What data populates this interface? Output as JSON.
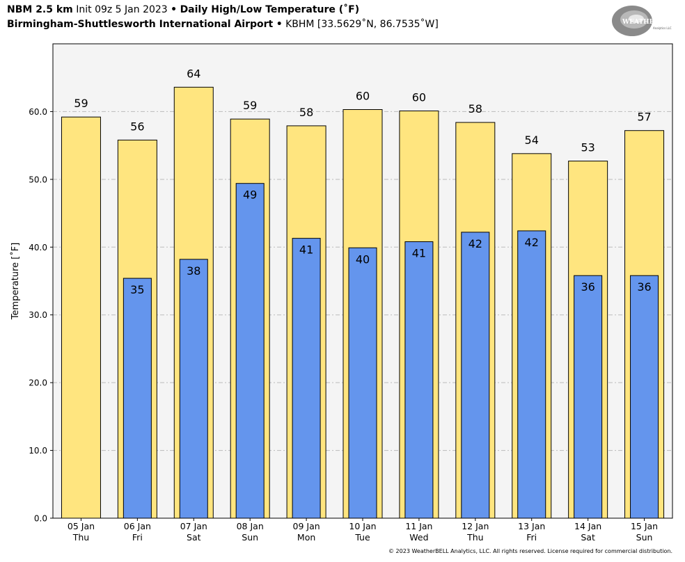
{
  "header": {
    "model": "NBM 2.5 km",
    "init": "Init 09z 5 Jan 2023",
    "bullet": "•",
    "product": "Daily High/Low Temperature (˚F)",
    "station": "Birmingham-Shuttlesworth International Airport",
    "station_code": "KBHM [33.5629˚N, 86.7535˚W]"
  },
  "logo": {
    "text_main": "WEATHERBELL",
    "text_sub": "Analytics LLC",
    "icon": "swirl-logo"
  },
  "footer": "© 2023 WeatherBELL Analytics, LLC. All rights reserved. License required for commercial distribution.",
  "colors": {
    "high": "#ffe57f",
    "low": "#6495ed",
    "plot_bg": "#f4f4f4",
    "grid": "#bbbbbb"
  },
  "chart_data": {
    "type": "bar",
    "ylabel": "Temperature [˚F]",
    "ylim": [
      0,
      70
    ],
    "yticks": [
      "0.0",
      "10.0",
      "20.0",
      "30.0",
      "40.0",
      "50.0",
      "60.0"
    ],
    "grid": true,
    "categories": [
      "05 Jan",
      "06 Jan",
      "07 Jan",
      "08 Jan",
      "09 Jan",
      "10 Jan",
      "11 Jan",
      "12 Jan",
      "13 Jan",
      "14 Jan",
      "15 Jan"
    ],
    "days": [
      "Thu",
      "Fri",
      "Sat",
      "Sun",
      "Mon",
      "Tue",
      "Wed",
      "Thu",
      "Fri",
      "Sat",
      "Sun"
    ],
    "series": [
      {
        "values": [
          59.2,
          55.8,
          63.6,
          58.9,
          57.9,
          60.3,
          60.1,
          58.4,
          53.8,
          52.7,
          57.2
        ],
        "labels": [
          "59",
          "56",
          "64",
          "59",
          "58",
          "60",
          "60",
          "58",
          "54",
          "53",
          "57"
        ]
      },
      {
        "values": [
          null,
          35.4,
          38.2,
          49.4,
          41.3,
          39.9,
          40.8,
          42.2,
          42.4,
          35.8,
          35.8
        ],
        "labels": [
          "",
          "35",
          "38",
          "49",
          "41",
          "40",
          "41",
          "42",
          "42",
          "36",
          "36"
        ]
      }
    ]
  }
}
